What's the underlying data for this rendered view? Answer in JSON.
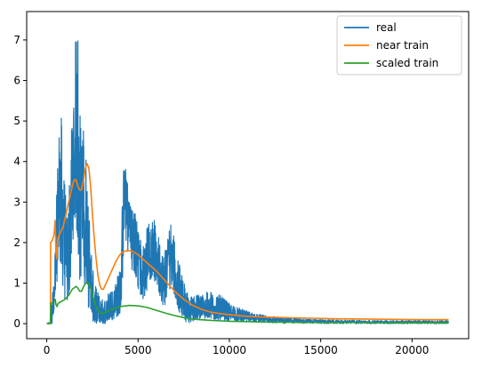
{
  "chart_data": {
    "type": "line",
    "title": "",
    "xlabel": "",
    "ylabel": "",
    "xlim": [
      -1100,
      23100
    ],
    "ylim": [
      -0.37,
      7.7
    ],
    "xticks": [
      0,
      5000,
      10000,
      15000,
      20000
    ],
    "yticks": [
      0,
      1,
      2,
      3,
      4,
      5,
      6,
      7
    ],
    "xtick_labels": [
      "0",
      "5000",
      "10000",
      "15000",
      "20000"
    ],
    "ytick_labels": [
      "0",
      "1",
      "2",
      "3",
      "4",
      "5",
      "6",
      "7"
    ],
    "grid": false,
    "legend_position": "top-right",
    "series": [
      {
        "name": "real",
        "color": "#1f77b4",
        "noisy": true,
        "points": [
          [
            0,
            0.0,
            0.0,
            0.0
          ],
          [
            200,
            0.0,
            0.0,
            0.05
          ],
          [
            300,
            0.3,
            0.0,
            0.8
          ],
          [
            400,
            0.5,
            0.1,
            1.0
          ],
          [
            500,
            1.8,
            0.8,
            2.6
          ],
          [
            600,
            2.5,
            1.2,
            4.0
          ],
          [
            700,
            3.5,
            1.5,
            5.1
          ],
          [
            800,
            3.0,
            1.0,
            5.1
          ],
          [
            900,
            2.5,
            0.8,
            4.0
          ],
          [
            1000,
            2.0,
            0.5,
            3.4
          ],
          [
            1100,
            1.5,
            0.4,
            2.6
          ],
          [
            1200,
            1.8,
            0.6,
            3.3
          ],
          [
            1300,
            2.2,
            1.0,
            4.0
          ],
          [
            1400,
            3.5,
            2.0,
            5.8
          ],
          [
            1500,
            4.0,
            2.2,
            6.0
          ],
          [
            1600,
            4.8,
            2.5,
            7.3
          ],
          [
            1700,
            4.5,
            1.5,
            7.3
          ],
          [
            1800,
            3.2,
            1.0,
            5.5
          ],
          [
            1900,
            2.8,
            1.0,
            4.5
          ],
          [
            2000,
            3.5,
            1.3,
            4.9
          ],
          [
            2100,
            2.5,
            0.8,
            4.7
          ],
          [
            2200,
            2.0,
            0.6,
            3.8
          ],
          [
            2300,
            1.4,
            0.3,
            2.9
          ],
          [
            2400,
            0.9,
            0.15,
            2.2
          ],
          [
            2500,
            0.5,
            0.05,
            1.5
          ],
          [
            2600,
            0.35,
            0.0,
            1.0
          ],
          [
            2700,
            0.25,
            0.0,
            0.9
          ],
          [
            2800,
            0.2,
            0.0,
            0.8
          ],
          [
            3000,
            0.15,
            0.0,
            0.6
          ],
          [
            3200,
            0.2,
            0.0,
            0.6
          ],
          [
            3400,
            0.3,
            0.05,
            0.8
          ],
          [
            3600,
            0.4,
            0.1,
            0.9
          ],
          [
            3800,
            0.5,
            0.15,
            1.1
          ],
          [
            4000,
            0.7,
            0.2,
            1.4
          ],
          [
            4100,
            1.6,
            0.6,
            2.5
          ],
          [
            4200,
            2.8,
            1.4,
            3.9
          ],
          [
            4300,
            3.2,
            2.2,
            4.3
          ],
          [
            4400,
            2.8,
            1.8,
            3.6
          ],
          [
            4500,
            2.5,
            1.5,
            3.2
          ],
          [
            4600,
            2.3,
            1.4,
            3.0
          ],
          [
            4800,
            2.0,
            1.2,
            2.8
          ],
          [
            5000,
            1.6,
            0.8,
            2.5
          ],
          [
            5200,
            1.2,
            0.5,
            2.0
          ],
          [
            5400,
            1.4,
            0.7,
            2.2
          ],
          [
            5600,
            1.7,
            1.0,
            2.6
          ],
          [
            5800,
            1.9,
            1.2,
            2.7
          ],
          [
            6000,
            1.6,
            0.9,
            2.4
          ],
          [
            6200,
            1.2,
            0.6,
            2.0
          ],
          [
            6400,
            0.9,
            0.4,
            1.7
          ],
          [
            6600,
            1.3,
            0.5,
            2.2
          ],
          [
            6800,
            1.8,
            1.0,
            2.5
          ],
          [
            7000,
            1.3,
            0.7,
            2.2
          ],
          [
            7200,
            0.9,
            0.3,
            1.6
          ],
          [
            7400,
            0.6,
            0.2,
            1.2
          ],
          [
            7600,
            0.35,
            0.05,
            0.9
          ],
          [
            7800,
            0.2,
            0.0,
            0.7
          ],
          [
            8000,
            0.3,
            0.05,
            0.7
          ],
          [
            8500,
            0.35,
            0.1,
            0.75
          ],
          [
            9000,
            0.35,
            0.1,
            0.8
          ],
          [
            9500,
            0.3,
            0.08,
            0.7
          ],
          [
            10000,
            0.25,
            0.05,
            0.5
          ],
          [
            10500,
            0.2,
            0.05,
            0.4
          ],
          [
            11000,
            0.15,
            0.03,
            0.3
          ],
          [
            12000,
            0.1,
            0.02,
            0.2
          ],
          [
            13000,
            0.08,
            0.01,
            0.15
          ],
          [
            14000,
            0.06,
            0.01,
            0.12
          ],
          [
            15000,
            0.05,
            0.0,
            0.1
          ],
          [
            16000,
            0.04,
            0.0,
            0.09
          ],
          [
            18000,
            0.03,
            0.0,
            0.08
          ],
          [
            20000,
            0.03,
            0.0,
            0.08
          ],
          [
            22000,
            0.03,
            0.0,
            0.07
          ]
        ]
      },
      {
        "name": "near train",
        "color": "#ff7f0e",
        "points": [
          [
            0,
            0.0
          ],
          [
            200,
            0.0
          ],
          [
            210,
            2.0
          ],
          [
            300,
            2.05
          ],
          [
            400,
            2.2
          ],
          [
            460,
            2.55
          ],
          [
            500,
            1.8
          ],
          [
            550,
            1.6
          ],
          [
            600,
            2.1
          ],
          [
            700,
            2.2
          ],
          [
            800,
            2.3
          ],
          [
            900,
            2.4
          ],
          [
            1000,
            2.6
          ],
          [
            1100,
            2.8
          ],
          [
            1200,
            3.0
          ],
          [
            1300,
            3.2
          ],
          [
            1400,
            3.4
          ],
          [
            1500,
            3.55
          ],
          [
            1600,
            3.55
          ],
          [
            1700,
            3.4
          ],
          [
            1800,
            3.3
          ],
          [
            1900,
            3.3
          ],
          [
            2000,
            3.5
          ],
          [
            2100,
            3.8
          ],
          [
            2200,
            3.95
          ],
          [
            2300,
            3.85
          ],
          [
            2400,
            3.4
          ],
          [
            2500,
            2.7
          ],
          [
            2600,
            2.1
          ],
          [
            2700,
            1.6
          ],
          [
            2800,
            1.2
          ],
          [
            2900,
            0.95
          ],
          [
            3000,
            0.85
          ],
          [
            3100,
            0.85
          ],
          [
            3200,
            0.95
          ],
          [
            3400,
            1.15
          ],
          [
            3600,
            1.35
          ],
          [
            3800,
            1.55
          ],
          [
            4000,
            1.7
          ],
          [
            4200,
            1.78
          ],
          [
            4400,
            1.8
          ],
          [
            4600,
            1.8
          ],
          [
            4800,
            1.76
          ],
          [
            5000,
            1.7
          ],
          [
            5500,
            1.5
          ],
          [
            6000,
            1.3
          ],
          [
            6500,
            1.05
          ],
          [
            7000,
            0.8
          ],
          [
            7500,
            0.6
          ],
          [
            8000,
            0.45
          ],
          [
            8500,
            0.35
          ],
          [
            9000,
            0.28
          ],
          [
            10000,
            0.22
          ],
          [
            11000,
            0.18
          ],
          [
            12000,
            0.16
          ],
          [
            14000,
            0.14
          ],
          [
            16000,
            0.12
          ],
          [
            18000,
            0.11
          ],
          [
            20000,
            0.1
          ],
          [
            22000,
            0.1
          ]
        ]
      },
      {
        "name": "scaled train",
        "color": "#2ca02c",
        "points": [
          [
            0,
            0.0
          ],
          [
            200,
            0.0
          ],
          [
            220,
            0.5
          ],
          [
            300,
            0.52
          ],
          [
            400,
            0.55
          ],
          [
            460,
            0.6
          ],
          [
            500,
            0.48
          ],
          [
            560,
            0.42
          ],
          [
            620,
            0.5
          ],
          [
            800,
            0.55
          ],
          [
            1000,
            0.6
          ],
          [
            1200,
            0.7
          ],
          [
            1400,
            0.85
          ],
          [
            1600,
            0.92
          ],
          [
            1700,
            0.88
          ],
          [
            1800,
            0.8
          ],
          [
            1900,
            0.8
          ],
          [
            2000,
            0.9
          ],
          [
            2100,
            0.98
          ],
          [
            2200,
            1.02
          ],
          [
            2300,
            0.98
          ],
          [
            2400,
            0.88
          ],
          [
            2500,
            0.72
          ],
          [
            2600,
            0.55
          ],
          [
            2700,
            0.42
          ],
          [
            2800,
            0.32
          ],
          [
            2900,
            0.27
          ],
          [
            3000,
            0.25
          ],
          [
            3200,
            0.28
          ],
          [
            3500,
            0.34
          ],
          [
            4000,
            0.42
          ],
          [
            4500,
            0.45
          ],
          [
            5000,
            0.44
          ],
          [
            5500,
            0.4
          ],
          [
            6000,
            0.33
          ],
          [
            6500,
            0.26
          ],
          [
            7000,
            0.2
          ],
          [
            7500,
            0.15
          ],
          [
            8000,
            0.11
          ],
          [
            9000,
            0.08
          ],
          [
            10000,
            0.06
          ],
          [
            11000,
            0.05
          ],
          [
            12000,
            0.04
          ],
          [
            14000,
            0.03
          ],
          [
            16000,
            0.03
          ],
          [
            18000,
            0.03
          ],
          [
            20000,
            0.02
          ],
          [
            22000,
            0.02
          ]
        ]
      }
    ]
  }
}
